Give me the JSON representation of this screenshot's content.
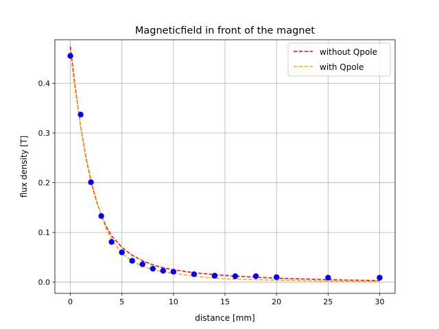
{
  "chart_data": {
    "type": "scatter",
    "title": "Magneticfield in front of the magnet",
    "xlabel": "distance [mm]",
    "ylabel": "flux density [T]",
    "xlim": [
      -1.5,
      31.5
    ],
    "ylim": [
      -0.0225,
      0.4875
    ],
    "xticks": [
      0,
      5,
      10,
      15,
      20,
      25,
      30
    ],
    "yticks": [
      0.0,
      0.1,
      0.2,
      0.3,
      0.4
    ],
    "grid": true,
    "legend_position": "top-right",
    "measured": {
      "color": "#0000ff",
      "x": [
        0,
        1,
        2,
        3,
        4,
        5,
        6,
        7,
        8,
        9,
        10,
        12,
        14,
        16,
        18,
        20,
        25,
        30
      ],
      "y": [
        0.455,
        0.337,
        0.201,
        0.133,
        0.081,
        0.06,
        0.043,
        0.036,
        0.027,
        0.023,
        0.021,
        0.016,
        0.013,
        0.012,
        0.012,
        0.01,
        0.009,
        0.009
      ]
    },
    "series": [
      {
        "name": "without Qpole",
        "color": "#ff0000",
        "style": "dashed",
        "x": [
          0,
          0.5,
          1,
          1.5,
          2,
          2.5,
          3,
          3.5,
          4,
          5,
          6,
          7,
          8,
          9,
          10,
          12,
          14,
          16,
          18,
          20,
          25,
          30
        ],
        "y": [
          0.474,
          0.388,
          0.313,
          0.252,
          0.203,
          0.165,
          0.135,
          0.111,
          0.093,
          0.07,
          0.054,
          0.043,
          0.035,
          0.029,
          0.025,
          0.019,
          0.015,
          0.012,
          0.01,
          0.008,
          0.005,
          0.003
        ]
      },
      {
        "name": "with Qpole",
        "color": "#ffa500",
        "style": "dashed",
        "x": [
          0,
          0.5,
          1,
          1.5,
          2,
          2.5,
          3,
          3.5,
          4,
          5,
          6,
          7,
          8,
          9,
          10,
          12,
          14,
          16,
          18,
          20,
          25,
          30
        ],
        "y": [
          0.462,
          0.382,
          0.315,
          0.255,
          0.207,
          0.168,
          0.134,
          0.107,
          0.086,
          0.058,
          0.042,
          0.032,
          0.025,
          0.021,
          0.018,
          0.012,
          0.008,
          0.006,
          0.005,
          0.004,
          0.002,
          0.001
        ]
      }
    ]
  }
}
